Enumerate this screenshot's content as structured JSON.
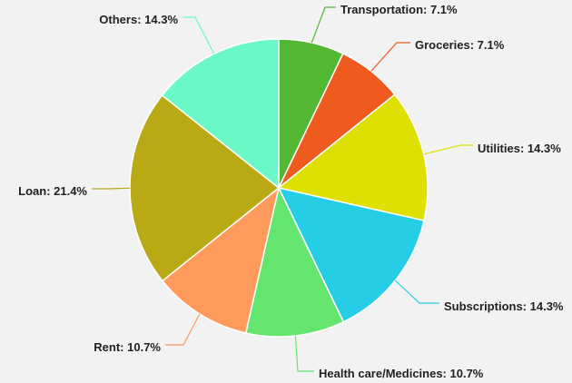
{
  "chart_data": {
    "type": "pie",
    "title": "",
    "start_angle_deg": 0,
    "direction": "clockwise",
    "slices": [
      {
        "label": "Transportation",
        "value": 7.1,
        "display": "Transportation: 7.1%",
        "color": "#52b733"
      },
      {
        "label": "Groceries",
        "value": 7.1,
        "display": "Groceries: 7.1%",
        "color": "#ef5a1e"
      },
      {
        "label": "Utilities",
        "value": 14.3,
        "display": "Utilities: 14.3%",
        "color": "#dde000"
      },
      {
        "label": "Subscriptions",
        "value": 14.3,
        "display": "Subscriptions: 14.3%",
        "color": "#26cde6"
      },
      {
        "label": "Health care/Medicines",
        "value": 10.7,
        "display": "Health care/Medicines: 10.7%",
        "color": "#64e66e"
      },
      {
        "label": "Rent",
        "value": 10.7,
        "display": "Rent: 10.7%",
        "color": "#ff9a5c"
      },
      {
        "label": "Loan",
        "value": 21.4,
        "display": "Loan: 21.4%",
        "color": "#b8a915"
      },
      {
        "label": "Others",
        "value": 14.3,
        "display": "Others: 14.3%",
        "color": "#6af8c7"
      }
    ]
  }
}
